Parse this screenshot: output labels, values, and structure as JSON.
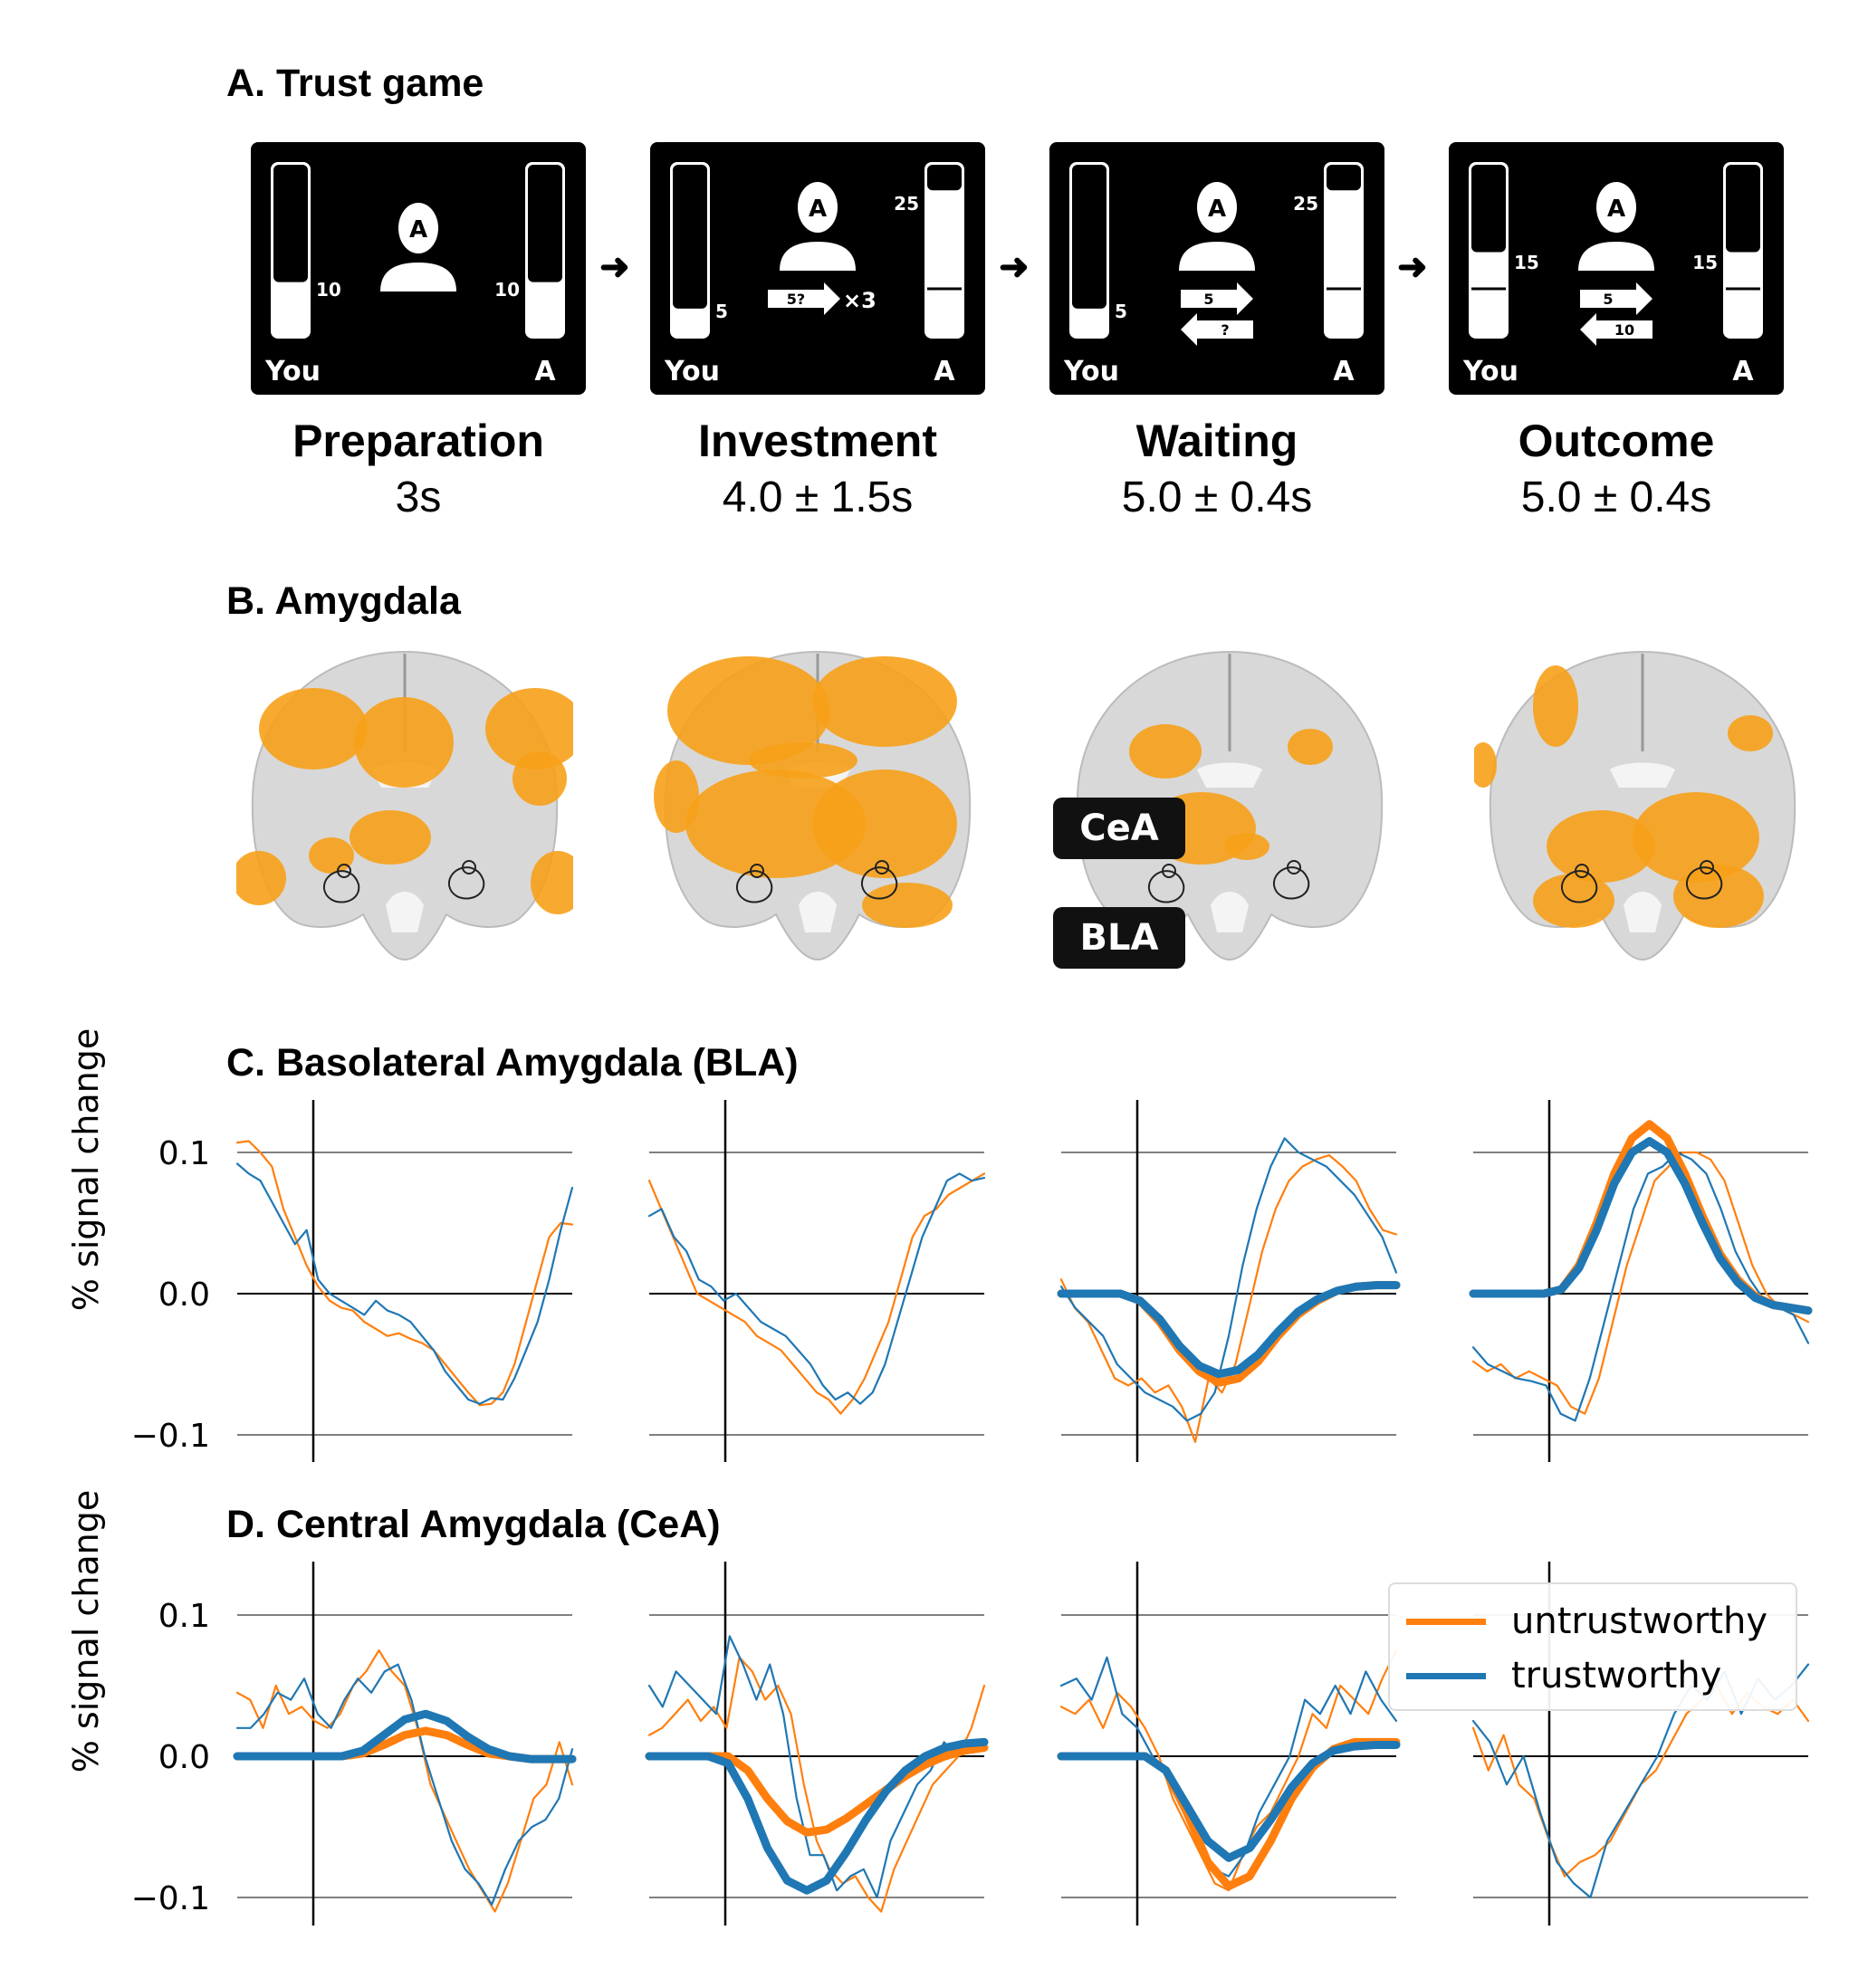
{
  "sections": {
    "a": "A. Trust game",
    "b": "B. Amygdala",
    "c": "C. Basolateral Amygdala (BLA)",
    "d": "D. Central Amygdala (CeA)"
  },
  "stages": [
    {
      "title": "Preparation",
      "duration": "3s",
      "you_label": "You",
      "partner_label": "A",
      "you_value": "10",
      "partner_value": "10",
      "avatar_letter": "A"
    },
    {
      "title": "Investment",
      "duration": "4.0 ± 1.5s",
      "you_label": "You",
      "partner_label": "A",
      "you_value": "5",
      "partner_top_value": "25",
      "avatar_letter": "A",
      "send_label": "5?",
      "multiplier": "×3"
    },
    {
      "title": "Waiting",
      "duration": "5.0 ± 0.4s",
      "you_label": "You",
      "partner_label": "A",
      "you_value": "5",
      "partner_top_value": "25",
      "avatar_letter": "A",
      "send_label": "5",
      "return_label": "?"
    },
    {
      "title": "Outcome",
      "duration": "5.0 ± 0.4s",
      "you_label": "You",
      "partner_label": "A",
      "you_value": "15",
      "partner_value": "15",
      "avatar_letter": "A",
      "send_label": "5",
      "return_label": "10"
    }
  ],
  "region_tags": {
    "cea": "CeA",
    "bla": "BLA"
  },
  "colors": {
    "untrustworthy": "#ff7f0e",
    "trustworthy": "#1f77b4",
    "activation": "#f7a11a"
  },
  "legend": {
    "untrustworthy": "untrustworthy",
    "trustworthy": "trustworthy"
  },
  "chart_data": [
    {
      "type": "line",
      "panel": "C",
      "region": "BLA",
      "stage": "Preparation",
      "ylabel": "% signal change",
      "yticks": [
        "0.1",
        "0.0",
        "−0.1"
      ],
      "ylim": [
        -0.12,
        0.12
      ],
      "series": [
        {
          "name": "untrustworthy",
          "style": "thin",
          "values": [
            0.107,
            0.108,
            0.1,
            0.09,
            0.06,
            0.04,
            0.02,
            0.005,
            -0.005,
            -0.01,
            -0.012,
            -0.02,
            -0.025,
            -0.03,
            -0.028,
            -0.032,
            -0.035,
            -0.04,
            -0.05,
            -0.06,
            -0.07,
            -0.079,
            -0.078,
            -0.07,
            -0.05,
            -0.02,
            0.01,
            0.04,
            0.05,
            0.049
          ]
        },
        {
          "name": "trustworthy",
          "style": "thin",
          "values": [
            0.092,
            0.085,
            0.08,
            0.065,
            0.05,
            0.035,
            0.045,
            0.01,
            0.0,
            -0.005,
            -0.01,
            -0.015,
            -0.005,
            -0.012,
            -0.015,
            -0.02,
            -0.03,
            -0.04,
            -0.055,
            -0.065,
            -0.075,
            -0.078,
            -0.074,
            -0.075,
            -0.06,
            -0.04,
            -0.02,
            0.01,
            0.045,
            0.075
          ]
        }
      ]
    },
    {
      "type": "line",
      "panel": "C",
      "region": "BLA",
      "stage": "Investment",
      "series": [
        {
          "name": "untrustworthy",
          "style": "thin",
          "values": [
            0.08,
            0.06,
            0.04,
            0.02,
            0.0,
            -0.005,
            -0.01,
            -0.015,
            -0.02,
            -0.03,
            -0.035,
            -0.04,
            -0.05,
            -0.06,
            -0.07,
            -0.075,
            -0.085,
            -0.075,
            -0.06,
            -0.04,
            -0.02,
            0.01,
            0.04,
            0.055,
            0.06,
            0.07,
            0.075,
            0.08,
            0.085
          ]
        },
        {
          "name": "trustworthy",
          "style": "thin",
          "values": [
            0.055,
            0.06,
            0.04,
            0.03,
            0.01,
            0.005,
            -0.005,
            0.0,
            -0.01,
            -0.02,
            -0.025,
            -0.03,
            -0.04,
            -0.05,
            -0.065,
            -0.075,
            -0.07,
            -0.078,
            -0.07,
            -0.05,
            -0.02,
            0.01,
            0.04,
            0.06,
            0.08,
            0.085,
            0.08,
            0.082
          ]
        }
      ]
    },
    {
      "type": "line",
      "panel": "C",
      "region": "BLA",
      "stage": "Waiting",
      "series": [
        {
          "name": "untrustworthy",
          "style": "thin",
          "values": [
            0.01,
            -0.01,
            -0.02,
            -0.04,
            -0.06,
            -0.065,
            -0.06,
            -0.07,
            -0.065,
            -0.08,
            -0.105,
            -0.06,
            -0.07,
            -0.05,
            -0.01,
            0.03,
            0.06,
            0.08,
            0.09,
            0.095,
            0.098,
            0.09,
            0.08,
            0.06,
            0.045,
            0.042
          ]
        },
        {
          "name": "trustworthy",
          "style": "thin",
          "values": [
            0.005,
            -0.01,
            -0.02,
            -0.03,
            -0.05,
            -0.06,
            -0.07,
            -0.075,
            -0.08,
            -0.09,
            -0.085,
            -0.07,
            -0.03,
            0.02,
            0.06,
            0.09,
            0.11,
            0.1,
            0.095,
            0.09,
            0.08,
            0.07,
            0.055,
            0.04,
            0.015
          ]
        },
        {
          "name": "untrustworthy",
          "style": "fit",
          "values": [
            0.0,
            0.0,
            0.0,
            0.0,
            -0.005,
            -0.02,
            -0.04,
            -0.055,
            -0.063,
            -0.06,
            -0.048,
            -0.03,
            -0.015,
            -0.005,
            0.002,
            0.005,
            0.006,
            0.006
          ]
        },
        {
          "name": "trustworthy",
          "style": "fit",
          "values": [
            0.0,
            0.0,
            0.0,
            0.0,
            -0.005,
            -0.018,
            -0.037,
            -0.051,
            -0.057,
            -0.054,
            -0.043,
            -0.027,
            -0.013,
            -0.004,
            0.002,
            0.005,
            0.006,
            0.006
          ]
        }
      ]
    },
    {
      "type": "line",
      "panel": "C",
      "region": "BLA",
      "stage": "Outcome",
      "series": [
        {
          "name": "untrustworthy",
          "style": "thin",
          "values": [
            -0.048,
            -0.055,
            -0.05,
            -0.06,
            -0.055,
            -0.06,
            -0.065,
            -0.08,
            -0.085,
            -0.06,
            -0.02,
            0.02,
            0.05,
            0.08,
            0.09,
            0.1,
            0.1,
            0.095,
            0.08,
            0.05,
            0.02,
            0.0,
            -0.01,
            -0.015,
            -0.02
          ]
        },
        {
          "name": "trustworthy",
          "style": "thin",
          "values": [
            -0.038,
            -0.05,
            -0.055,
            -0.06,
            -0.062,
            -0.065,
            -0.085,
            -0.09,
            -0.06,
            -0.02,
            0.02,
            0.06,
            0.085,
            0.09,
            0.1,
            0.095,
            0.085,
            0.06,
            0.03,
            0.01,
            -0.005,
            -0.01,
            -0.015,
            -0.035
          ]
        },
        {
          "name": "untrustworthy",
          "style": "fit",
          "values": [
            0.0,
            0.0,
            0.0,
            0.0,
            0.0,
            0.003,
            0.02,
            0.05,
            0.085,
            0.11,
            0.12,
            0.11,
            0.085,
            0.055,
            0.028,
            0.01,
            -0.002,
            -0.008,
            -0.01,
            -0.012
          ]
        },
        {
          "name": "trustworthy",
          "style": "fit",
          "values": [
            0.0,
            0.0,
            0.0,
            0.0,
            0.0,
            0.003,
            0.018,
            0.045,
            0.078,
            0.1,
            0.108,
            0.1,
            0.078,
            0.05,
            0.025,
            0.008,
            -0.003,
            -0.008,
            -0.01,
            -0.012
          ]
        }
      ]
    },
    {
      "type": "line",
      "panel": "D",
      "region": "CeA",
      "stage": "Preparation",
      "ylabel": "% signal change",
      "yticks": [
        "0.1",
        "0.0",
        "−0.1"
      ],
      "ylim": [
        -0.12,
        0.12
      ],
      "series": [
        {
          "name": "untrustworthy",
          "style": "thin",
          "values": [
            0.045,
            0.04,
            0.02,
            0.05,
            0.03,
            0.035,
            0.025,
            0.02,
            0.03,
            0.05,
            0.06,
            0.075,
            0.06,
            0.05,
            0.02,
            -0.02,
            -0.04,
            -0.06,
            -0.08,
            -0.095,
            -0.11,
            -0.09,
            -0.06,
            -0.03,
            -0.02,
            0.01,
            -0.02
          ]
        },
        {
          "name": "trustworthy",
          "style": "thin",
          "values": [
            0.02,
            0.02,
            0.03,
            0.045,
            0.04,
            0.055,
            0.03,
            0.02,
            0.04,
            0.055,
            0.045,
            0.06,
            0.065,
            0.04,
            0.0,
            -0.03,
            -0.06,
            -0.08,
            -0.09,
            -0.105,
            -0.08,
            -0.06,
            -0.05,
            -0.045,
            -0.03,
            0.005
          ]
        },
        {
          "name": "untrustworthy",
          "style": "fit",
          "values": [
            0.0,
            0.0,
            0.0,
            0.0,
            0.0,
            0.0,
            0.002,
            0.008,
            0.015,
            0.018,
            0.015,
            0.008,
            0.002,
            0.0,
            -0.002,
            -0.002,
            -0.002
          ]
        },
        {
          "name": "trustworthy",
          "style": "fit",
          "values": [
            0.0,
            0.0,
            0.0,
            0.0,
            0.0,
            0.0,
            0.004,
            0.015,
            0.026,
            0.03,
            0.025,
            0.014,
            0.005,
            0.0,
            -0.002,
            -0.002,
            -0.002
          ]
        }
      ]
    },
    {
      "type": "line",
      "panel": "D",
      "region": "CeA",
      "stage": "Investment",
      "series": [
        {
          "name": "untrustworthy",
          "style": "thin",
          "values": [
            0.015,
            0.02,
            0.03,
            0.04,
            0.025,
            0.035,
            0.02,
            0.07,
            0.06,
            0.04,
            0.05,
            0.03,
            -0.02,
            -0.06,
            -0.08,
            -0.09,
            -0.085,
            -0.1,
            -0.11,
            -0.08,
            -0.06,
            -0.04,
            -0.02,
            -0.01,
            0.0,
            0.02,
            0.05
          ]
        },
        {
          "name": "trustworthy",
          "style": "thin",
          "values": [
            0.05,
            0.035,
            0.06,
            0.05,
            0.04,
            0.03,
            0.085,
            0.065,
            0.04,
            0.065,
            0.03,
            -0.03,
            -0.07,
            -0.07,
            -0.095,
            -0.085,
            -0.08,
            -0.1,
            -0.06,
            -0.04,
            -0.02,
            -0.01,
            0.01,
            0.0,
            0.01,
            0.005
          ]
        },
        {
          "name": "untrustworthy",
          "style": "fit",
          "values": [
            0.0,
            0.0,
            0.0,
            0.0,
            0.0,
            -0.01,
            -0.03,
            -0.046,
            -0.054,
            -0.052,
            -0.044,
            -0.034,
            -0.024,
            -0.014,
            -0.006,
            0.0,
            0.004,
            0.006
          ]
        },
        {
          "name": "trustworthy",
          "style": "fit",
          "values": [
            0.0,
            0.0,
            0.0,
            0.0,
            -0.005,
            -0.03,
            -0.065,
            -0.088,
            -0.095,
            -0.088,
            -0.068,
            -0.045,
            -0.025,
            -0.01,
            0.0,
            0.006,
            0.009,
            0.01
          ]
        }
      ]
    },
    {
      "type": "line",
      "panel": "D",
      "region": "CeA",
      "stage": "Waiting",
      "series": [
        {
          "name": "untrustworthy",
          "style": "thin",
          "values": [
            0.035,
            0.03,
            0.04,
            0.02,
            0.045,
            0.035,
            0.02,
            0.0,
            -0.03,
            -0.05,
            -0.07,
            -0.09,
            -0.095,
            -0.07,
            -0.05,
            -0.04,
            -0.02,
            0.0,
            0.03,
            0.02,
            0.05,
            0.04,
            0.03,
            0.055,
            0.075
          ]
        },
        {
          "name": "trustworthy",
          "style": "thin",
          "values": [
            0.05,
            0.055,
            0.04,
            0.07,
            0.03,
            0.02,
            0.0,
            -0.01,
            -0.03,
            -0.06,
            -0.08,
            -0.085,
            -0.07,
            -0.04,
            -0.02,
            0.0,
            0.04,
            0.03,
            0.05,
            0.03,
            0.06,
            0.04,
            0.025
          ]
        },
        {
          "name": "untrustworthy",
          "style": "fit",
          "values": [
            0.0,
            0.0,
            0.0,
            0.0,
            0.0,
            -0.01,
            -0.04,
            -0.075,
            -0.092,
            -0.085,
            -0.06,
            -0.03,
            -0.008,
            0.005,
            0.01,
            0.01,
            0.01
          ]
        },
        {
          "name": "trustworthy",
          "style": "fit",
          "values": [
            0.0,
            0.0,
            0.0,
            0.0,
            0.0,
            -0.01,
            -0.035,
            -0.06,
            -0.072,
            -0.065,
            -0.045,
            -0.022,
            -0.005,
            0.004,
            0.007,
            0.008,
            0.008
          ]
        }
      ]
    },
    {
      "type": "line",
      "panel": "D",
      "region": "CeA",
      "stage": "Outcome",
      "series": [
        {
          "name": "untrustworthy",
          "style": "thin",
          "values": [
            0.02,
            -0.01,
            0.015,
            -0.02,
            -0.03,
            -0.06,
            -0.085,
            -0.075,
            -0.07,
            -0.06,
            -0.04,
            -0.02,
            -0.01,
            0.01,
            0.03,
            0.04,
            0.05,
            0.03,
            0.045,
            0.035,
            0.03,
            0.04,
            0.025
          ]
        },
        {
          "name": "trustworthy",
          "style": "thin",
          "values": [
            0.025,
            0.01,
            -0.02,
            0.0,
            -0.04,
            -0.075,
            -0.09,
            -0.1,
            -0.06,
            -0.04,
            -0.02,
            0.0,
            0.03,
            0.05,
            0.04,
            0.06,
            0.03,
            0.055,
            0.04,
            0.05,
            0.065
          ]
        }
      ]
    }
  ]
}
